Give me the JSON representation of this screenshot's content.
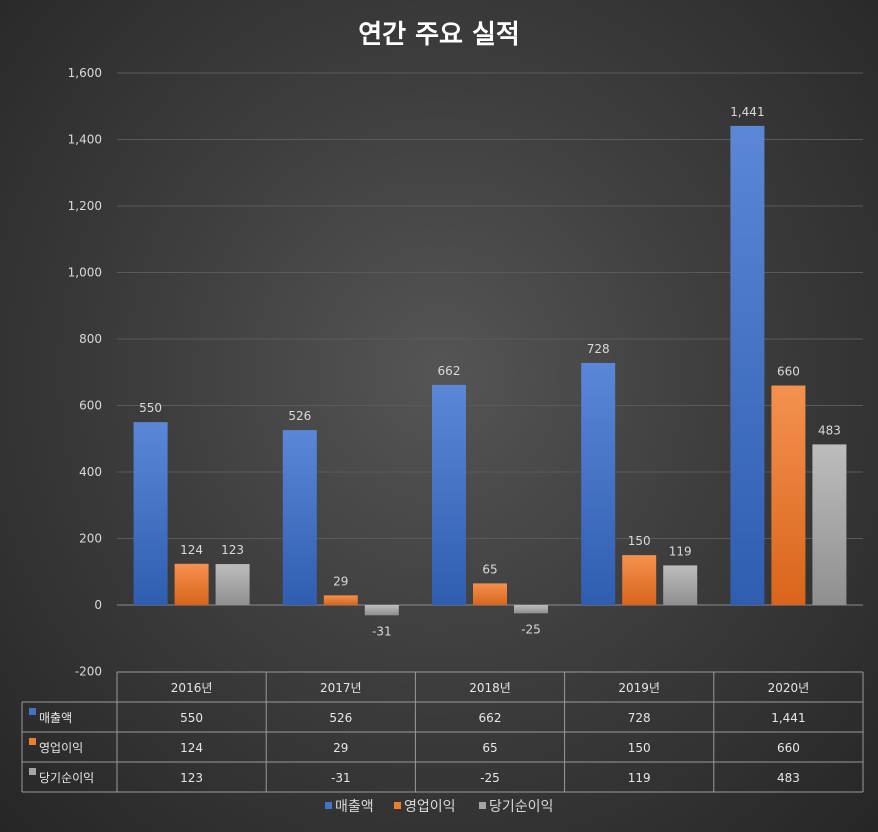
{
  "chart_data": {
    "type": "bar",
    "title": "연간 주요 실적",
    "categories": [
      "2016년",
      "2017년",
      "2018년",
      "2019년",
      "2020년"
    ],
    "series": [
      {
        "name": "매출액",
        "values": [
          550,
          526,
          662,
          728,
          1441
        ],
        "labels": [
          "550",
          "526",
          "662",
          "728",
          "1,441"
        ],
        "color": "#4472c4"
      },
      {
        "name": "영업이익",
        "values": [
          124,
          29,
          65,
          150,
          660
        ],
        "labels": [
          "124",
          "29",
          "65",
          "150",
          "660"
        ],
        "color": "#ed7d31"
      },
      {
        "name": "당기순이익",
        "values": [
          123,
          -31,
          -25,
          119,
          483
        ],
        "labels": [
          "123",
          "-31",
          "-25",
          "119",
          "483"
        ],
        "color": "#a5a5a5"
      }
    ],
    "ylim": [
      -200,
      1600
    ],
    "yticks": [
      -200,
      0,
      200,
      400,
      600,
      800,
      1000,
      1200,
      1400,
      1600
    ],
    "ytick_labels": [
      "-200",
      "0",
      "200",
      "400",
      "600",
      "800",
      "1,000",
      "1,200",
      "1,400",
      "1,600"
    ],
    "grid": true,
    "legend": "bottom",
    "data_table": true
  }
}
